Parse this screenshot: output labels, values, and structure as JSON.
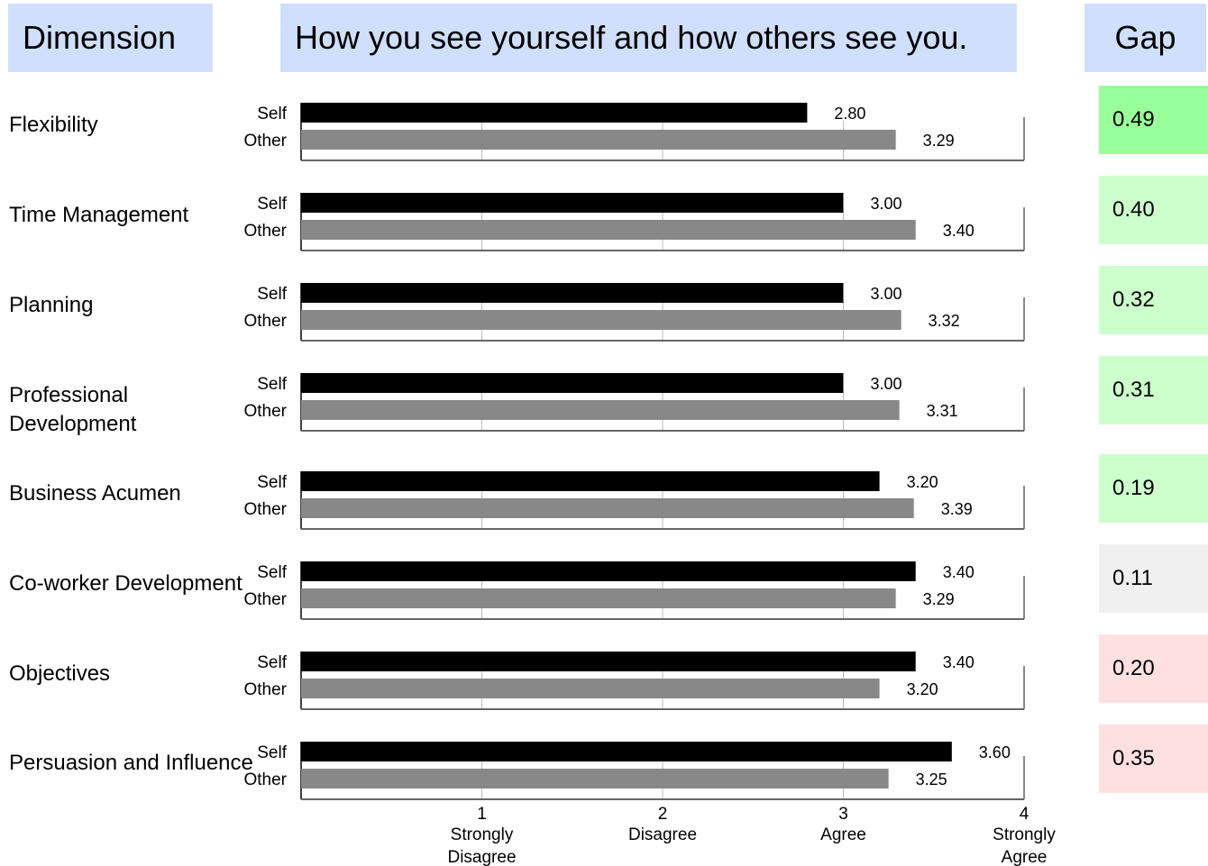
{
  "header": {
    "dimension_label": "Dimension",
    "title": "How you see yourself and how others see you.",
    "gap_label": "Gap"
  },
  "colors": {
    "header_bg": "#cfdffc",
    "self_bar": "#000000",
    "other_bar": "#888888",
    "gap_strong_positive": "#99ff99",
    "gap_positive": "#ccffcc",
    "gap_neutral": "#f0f0f0",
    "gap_negative": "#ffe0e0"
  },
  "chart_data": {
    "type": "bar",
    "orientation": "horizontal",
    "categories": [
      "Flexibility",
      "Time Management",
      "Planning",
      "Professional Development",
      "Business Acumen",
      "Co-worker Development",
      "Objectives",
      "Persuasion and Influence"
    ],
    "series": [
      {
        "name": "Self",
        "values": [
          2.8,
          3.0,
          3.0,
          3.0,
          3.2,
          3.4,
          3.4,
          3.6
        ],
        "labels": [
          "2.80",
          "3.00",
          "3.00",
          "3.00",
          "3.20",
          "3.40",
          "3.40",
          "3.60"
        ],
        "color": "#000000"
      },
      {
        "name": "Other",
        "values": [
          3.29,
          3.4,
          3.32,
          3.31,
          3.39,
          3.29,
          3.2,
          3.25
        ],
        "labels": [
          "3.29",
          "3.40",
          "3.32",
          "3.31",
          "3.39",
          "3.29",
          "3.20",
          "3.25"
        ],
        "color": "#888888"
      }
    ],
    "gaps": [
      {
        "value": "0.49",
        "color": "#99ff99"
      },
      {
        "value": "0.40",
        "color": "#ccffcc"
      },
      {
        "value": "0.32",
        "color": "#ccffcc"
      },
      {
        "value": "0.31",
        "color": "#ccffcc"
      },
      {
        "value": "0.19",
        "color": "#ccffcc"
      },
      {
        "value": "0.11",
        "color": "#f0f0f0"
      },
      {
        "value": "0.20",
        "color": "#ffe0e0"
      },
      {
        "value": "0.35",
        "color": "#ffe0e0"
      }
    ],
    "xlim": [
      0,
      4
    ],
    "xticks": [
      {
        "value": 1,
        "number": "1",
        "text": [
          "Strongly",
          "Disagree"
        ]
      },
      {
        "value": 2,
        "number": "2",
        "text": [
          "Disagree"
        ]
      },
      {
        "value": 3,
        "number": "3",
        "text": [
          "Agree"
        ]
      },
      {
        "value": 4,
        "number": "4",
        "text": [
          "Strongly",
          "Agree"
        ]
      }
    ]
  }
}
